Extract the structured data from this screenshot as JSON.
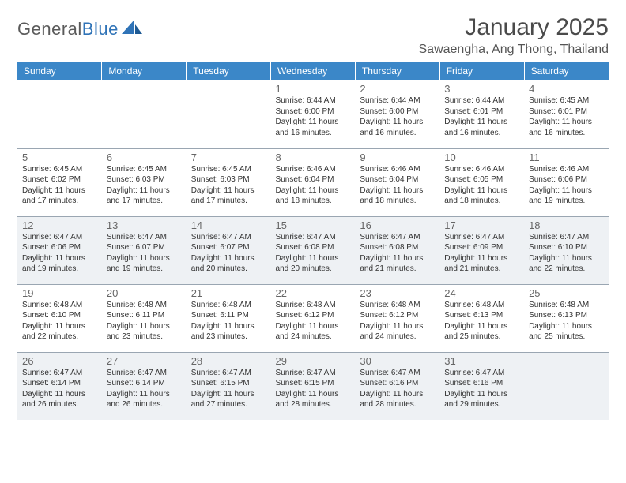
{
  "brand": {
    "name_part1": "General",
    "name_part2": "Blue"
  },
  "title": "January 2025",
  "location": "Sawaengha, Ang Thong, Thailand",
  "colors": {
    "header_bg": "#3b87c8",
    "header_text": "#ffffff",
    "alt_row_bg": "#eef1f4",
    "border": "#9aa6b2",
    "brand_gray": "#5a5a5a",
    "brand_blue": "#2f73b7",
    "text": "#333333"
  },
  "weekdays": [
    "Sunday",
    "Monday",
    "Tuesday",
    "Wednesday",
    "Thursday",
    "Friday",
    "Saturday"
  ],
  "weeks": [
    [
      {
        "day": "",
        "sunrise": "",
        "sunset": "",
        "daylight": ""
      },
      {
        "day": "",
        "sunrise": "",
        "sunset": "",
        "daylight": ""
      },
      {
        "day": "",
        "sunrise": "",
        "sunset": "",
        "daylight": ""
      },
      {
        "day": "1",
        "sunrise": "Sunrise: 6:44 AM",
        "sunset": "Sunset: 6:00 PM",
        "daylight": "Daylight: 11 hours and 16 minutes."
      },
      {
        "day": "2",
        "sunrise": "Sunrise: 6:44 AM",
        "sunset": "Sunset: 6:00 PM",
        "daylight": "Daylight: 11 hours and 16 minutes."
      },
      {
        "day": "3",
        "sunrise": "Sunrise: 6:44 AM",
        "sunset": "Sunset: 6:01 PM",
        "daylight": "Daylight: 11 hours and 16 minutes."
      },
      {
        "day": "4",
        "sunrise": "Sunrise: 6:45 AM",
        "sunset": "Sunset: 6:01 PM",
        "daylight": "Daylight: 11 hours and 16 minutes."
      }
    ],
    [
      {
        "day": "5",
        "sunrise": "Sunrise: 6:45 AM",
        "sunset": "Sunset: 6:02 PM",
        "daylight": "Daylight: 11 hours and 17 minutes."
      },
      {
        "day": "6",
        "sunrise": "Sunrise: 6:45 AM",
        "sunset": "Sunset: 6:03 PM",
        "daylight": "Daylight: 11 hours and 17 minutes."
      },
      {
        "day": "7",
        "sunrise": "Sunrise: 6:45 AM",
        "sunset": "Sunset: 6:03 PM",
        "daylight": "Daylight: 11 hours and 17 minutes."
      },
      {
        "day": "8",
        "sunrise": "Sunrise: 6:46 AM",
        "sunset": "Sunset: 6:04 PM",
        "daylight": "Daylight: 11 hours and 18 minutes."
      },
      {
        "day": "9",
        "sunrise": "Sunrise: 6:46 AM",
        "sunset": "Sunset: 6:04 PM",
        "daylight": "Daylight: 11 hours and 18 minutes."
      },
      {
        "day": "10",
        "sunrise": "Sunrise: 6:46 AM",
        "sunset": "Sunset: 6:05 PM",
        "daylight": "Daylight: 11 hours and 18 minutes."
      },
      {
        "day": "11",
        "sunrise": "Sunrise: 6:46 AM",
        "sunset": "Sunset: 6:06 PM",
        "daylight": "Daylight: 11 hours and 19 minutes."
      }
    ],
    [
      {
        "day": "12",
        "sunrise": "Sunrise: 6:47 AM",
        "sunset": "Sunset: 6:06 PM",
        "daylight": "Daylight: 11 hours and 19 minutes."
      },
      {
        "day": "13",
        "sunrise": "Sunrise: 6:47 AM",
        "sunset": "Sunset: 6:07 PM",
        "daylight": "Daylight: 11 hours and 19 minutes."
      },
      {
        "day": "14",
        "sunrise": "Sunrise: 6:47 AM",
        "sunset": "Sunset: 6:07 PM",
        "daylight": "Daylight: 11 hours and 20 minutes."
      },
      {
        "day": "15",
        "sunrise": "Sunrise: 6:47 AM",
        "sunset": "Sunset: 6:08 PM",
        "daylight": "Daylight: 11 hours and 20 minutes."
      },
      {
        "day": "16",
        "sunrise": "Sunrise: 6:47 AM",
        "sunset": "Sunset: 6:08 PM",
        "daylight": "Daylight: 11 hours and 21 minutes."
      },
      {
        "day": "17",
        "sunrise": "Sunrise: 6:47 AM",
        "sunset": "Sunset: 6:09 PM",
        "daylight": "Daylight: 11 hours and 21 minutes."
      },
      {
        "day": "18",
        "sunrise": "Sunrise: 6:47 AM",
        "sunset": "Sunset: 6:10 PM",
        "daylight": "Daylight: 11 hours and 22 minutes."
      }
    ],
    [
      {
        "day": "19",
        "sunrise": "Sunrise: 6:48 AM",
        "sunset": "Sunset: 6:10 PM",
        "daylight": "Daylight: 11 hours and 22 minutes."
      },
      {
        "day": "20",
        "sunrise": "Sunrise: 6:48 AM",
        "sunset": "Sunset: 6:11 PM",
        "daylight": "Daylight: 11 hours and 23 minutes."
      },
      {
        "day": "21",
        "sunrise": "Sunrise: 6:48 AM",
        "sunset": "Sunset: 6:11 PM",
        "daylight": "Daylight: 11 hours and 23 minutes."
      },
      {
        "day": "22",
        "sunrise": "Sunrise: 6:48 AM",
        "sunset": "Sunset: 6:12 PM",
        "daylight": "Daylight: 11 hours and 24 minutes."
      },
      {
        "day": "23",
        "sunrise": "Sunrise: 6:48 AM",
        "sunset": "Sunset: 6:12 PM",
        "daylight": "Daylight: 11 hours and 24 minutes."
      },
      {
        "day": "24",
        "sunrise": "Sunrise: 6:48 AM",
        "sunset": "Sunset: 6:13 PM",
        "daylight": "Daylight: 11 hours and 25 minutes."
      },
      {
        "day": "25",
        "sunrise": "Sunrise: 6:48 AM",
        "sunset": "Sunset: 6:13 PM",
        "daylight": "Daylight: 11 hours and 25 minutes."
      }
    ],
    [
      {
        "day": "26",
        "sunrise": "Sunrise: 6:47 AM",
        "sunset": "Sunset: 6:14 PM",
        "daylight": "Daylight: 11 hours and 26 minutes."
      },
      {
        "day": "27",
        "sunrise": "Sunrise: 6:47 AM",
        "sunset": "Sunset: 6:14 PM",
        "daylight": "Daylight: 11 hours and 26 minutes."
      },
      {
        "day": "28",
        "sunrise": "Sunrise: 6:47 AM",
        "sunset": "Sunset: 6:15 PM",
        "daylight": "Daylight: 11 hours and 27 minutes."
      },
      {
        "day": "29",
        "sunrise": "Sunrise: 6:47 AM",
        "sunset": "Sunset: 6:15 PM",
        "daylight": "Daylight: 11 hours and 28 minutes."
      },
      {
        "day": "30",
        "sunrise": "Sunrise: 6:47 AM",
        "sunset": "Sunset: 6:16 PM",
        "daylight": "Daylight: 11 hours and 28 minutes."
      },
      {
        "day": "31",
        "sunrise": "Sunrise: 6:47 AM",
        "sunset": "Sunset: 6:16 PM",
        "daylight": "Daylight: 11 hours and 29 minutes."
      },
      {
        "day": "",
        "sunrise": "",
        "sunset": "",
        "daylight": ""
      }
    ]
  ]
}
